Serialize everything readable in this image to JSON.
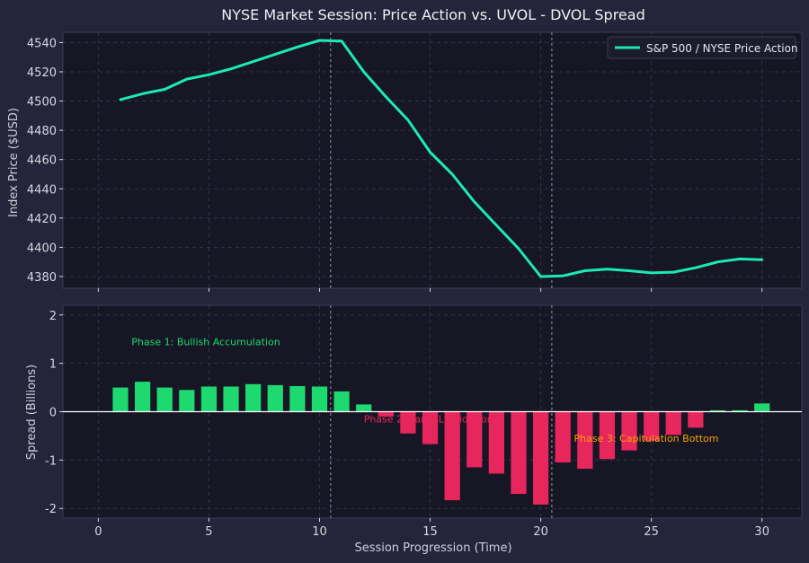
{
  "colors": {
    "figure_bg": "#24243a",
    "plot_bg": "#161625",
    "grid": "#3a3a52",
    "price_line": "#1de9b6",
    "bar_positive": "#1dd96f",
    "bar_negative": "#e8265e",
    "phase1": "#1dd96f",
    "phase2": "#e8265e",
    "phase3": "#f5a300",
    "marker_line": "#9a9ab0",
    "zero_line": "#ffffff"
  },
  "chart_data": [
    {
      "type": "line",
      "title": "NYSE Market Session: Price Action vs. UVOL - DVOL Spread",
      "ylabel": "Index Price ($USD)",
      "xlim": [
        -1.6,
        31.8
      ],
      "ylim": [
        4372,
        4547
      ],
      "yticks": [
        4380,
        4400,
        4420,
        4440,
        4460,
        4480,
        4500,
        4520,
        4540
      ],
      "legend_position": "top-right",
      "grid": true,
      "series": [
        {
          "name": "S&P 500 / NYSE Price Action",
          "x": [
            1,
            2,
            3,
            4,
            5,
            6,
            7,
            8,
            9,
            10,
            11,
            12,
            13,
            14,
            15,
            16,
            17,
            18,
            19,
            20,
            21,
            22,
            23,
            24,
            25,
            26,
            27,
            28,
            29,
            30
          ],
          "y": [
            4501,
            4505,
            4508,
            4515,
            4518,
            4522,
            4527,
            4532,
            4537,
            4541.5,
            4541,
            4520,
            4503,
            4487,
            4465,
            4450,
            4431,
            4415,
            4399,
            4380,
            4380.5,
            4384,
            4385,
            4384,
            4382.5,
            4383,
            4386,
            4390,
            4392,
            4391.5
          ]
        }
      ],
      "vertical_markers": [
        10.5,
        20.5
      ]
    },
    {
      "type": "bar",
      "xlabel": "Session Progression (Time)",
      "ylabel": "Spread (Billions)",
      "xlim": [
        -1.6,
        31.8
      ],
      "ylim": [
        -2.2,
        2.2
      ],
      "yticks": [
        -2,
        -1,
        0,
        1,
        2
      ],
      "xticks": [
        0,
        5,
        10,
        15,
        20,
        25,
        30
      ],
      "grid": true,
      "x": [
        1,
        2,
        3,
        4,
        5,
        6,
        7,
        8,
        9,
        10,
        11,
        12,
        13,
        14,
        15,
        16,
        17,
        18,
        19,
        20,
        21,
        22,
        23,
        24,
        25,
        26,
        27,
        28,
        29,
        30
      ],
      "values": [
        0.5,
        0.62,
        0.5,
        0.45,
        0.52,
        0.52,
        0.57,
        0.55,
        0.53,
        0.52,
        0.42,
        0.15,
        -0.1,
        -0.45,
        -0.67,
        -1.83,
        -1.15,
        -1.28,
        -1.7,
        -1.92,
        -1.05,
        -1.18,
        -0.98,
        -0.8,
        -0.6,
        -0.48,
        -0.33,
        0.03,
        0.03,
        0.17
      ],
      "vertical_markers": [
        10.5,
        20.5
      ],
      "annotations": [
        {
          "text": "Phase 1: Bullish Accumulation",
          "x": 1.5,
          "y": 1.45,
          "color_key": "phase1"
        },
        {
          "text": "Phase 2: Panic Liquidation",
          "x": 12.0,
          "y": -0.15,
          "color_key": "phase2"
        },
        {
          "text": "Phase 3: Capitulation Bottom",
          "x": 21.5,
          "y": -0.55,
          "color_key": "phase3"
        }
      ]
    }
  ]
}
